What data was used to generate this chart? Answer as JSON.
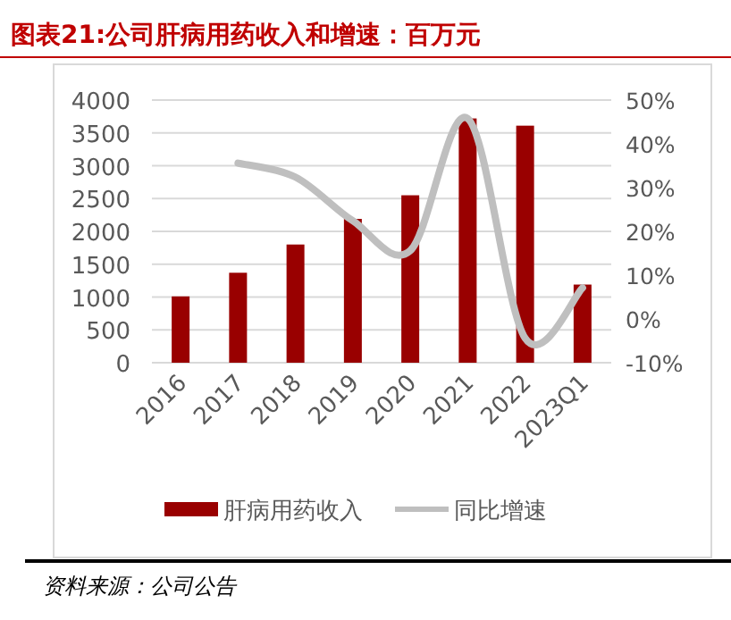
{
  "chart_data": {
    "type": "bar",
    "title": "图表21:公司肝病用药收入和增速：百万元",
    "categories": [
      "2016",
      "2017",
      "2018",
      "2019",
      "2020",
      "2021",
      "2022",
      "2023Q1"
    ],
    "series": [
      {
        "name": "肝病用药收入",
        "color": "#990000",
        "values": [
          1010,
          1370,
          1800,
          2190,
          2550,
          3720,
          3610,
          1190
        ]
      },
      {
        "name": "同比增速",
        "type": "line",
        "axis": "y2",
        "color": "#bfbfbf",
        "values": [
          null,
          35.6,
          32.4,
          22.4,
          15.6,
          45.8,
          -4.4,
          7.1
        ]
      }
    ],
    "ylim": [
      0,
      4000
    ],
    "yticks": [
      0,
      500,
      1000,
      1500,
      2000,
      2500,
      3000,
      3500,
      4000
    ],
    "y2lim": [
      -10,
      50
    ],
    "y2ticks": [
      {
        "value": -10,
        "label": "-10%"
      },
      {
        "value": 0,
        "label": "0%"
      },
      {
        "value": 10,
        "label": "10%"
      },
      {
        "value": 20,
        "label": "20%"
      },
      {
        "value": 30,
        "label": "30%"
      },
      {
        "value": 40,
        "label": "40%"
      },
      {
        "value": 50,
        "label": "50%"
      }
    ],
    "grid": "y",
    "legend": "bottom",
    "annotations": [
      "资料来源：公司公告"
    ]
  }
}
